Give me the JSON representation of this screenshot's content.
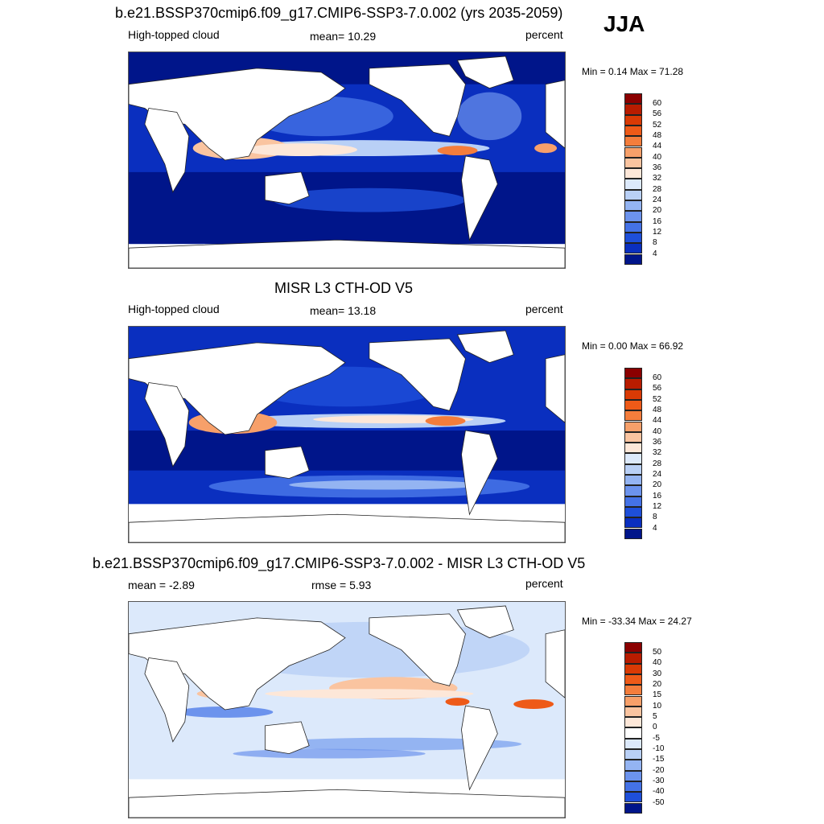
{
  "season": "JJA",
  "panels": [
    {
      "title": "b.e21.BSSP370cmip6.f09_g17.CMIP6-SSP3-7.0.002 (yrs 2035-2059)",
      "left_label": "High-topped cloud",
      "center_label": "mean=  10.29",
      "right_label": "percent",
      "minmax": "Min =   0.14 Max =  71.28",
      "kind": "abs",
      "colorbar_labels": [
        "60",
        "56",
        "52",
        "48",
        "44",
        "40",
        "36",
        "32",
        "28",
        "24",
        "20",
        "16",
        "12",
        "8",
        "4"
      ]
    },
    {
      "title": "MISR L3 CTH-OD V5",
      "left_label": "High-topped cloud",
      "center_label": "mean=  13.18",
      "right_label": "percent",
      "minmax": "Min =   0.00 Max =  66.92",
      "kind": "abs",
      "colorbar_labels": [
        "60",
        "56",
        "52",
        "48",
        "44",
        "40",
        "36",
        "32",
        "28",
        "24",
        "20",
        "16",
        "12",
        "8",
        "4"
      ]
    },
    {
      "title": "b.e21.BSSP370cmip6.f09_g17.CMIP6-SSP3-7.0.002 - MISR L3 CTH-OD V5",
      "left_label": "mean =  -2.89",
      "center_label": "rmse =   5.93",
      "right_label": "percent",
      "minmax": "Min = -33.34 Max =  24.27",
      "kind": "diff",
      "colorbar_labels": [
        "50",
        "40",
        "30",
        "20",
        "15",
        "10",
        "5",
        "0",
        "-5",
        "-10",
        "-15",
        "-20",
        "-30",
        "-40",
        "-50"
      ]
    }
  ],
  "colors": {
    "abs_scale": [
      "#8b0000",
      "#b81c00",
      "#d93a05",
      "#ee5a18",
      "#f47d3c",
      "#f7a06a",
      "#fac4a0",
      "#fde7d8",
      "#dce9fb",
      "#b9d0f6",
      "#94b4f2",
      "#6c93ed",
      "#4472e6",
      "#1e4fd9",
      "#0a2fbf",
      "#00158a"
    ],
    "diff_scale": [
      "#8b0000",
      "#b81c00",
      "#d93a05",
      "#ee5a18",
      "#f47d3c",
      "#f7a06a",
      "#fac4a0",
      "#fde7d8",
      "#ffffff",
      "#dce9fb",
      "#b9d0f6",
      "#94b4f2",
      "#6c93ed",
      "#4472e6",
      "#1e4fd9",
      "#0a2fbf",
      "#00158a"
    ]
  }
}
